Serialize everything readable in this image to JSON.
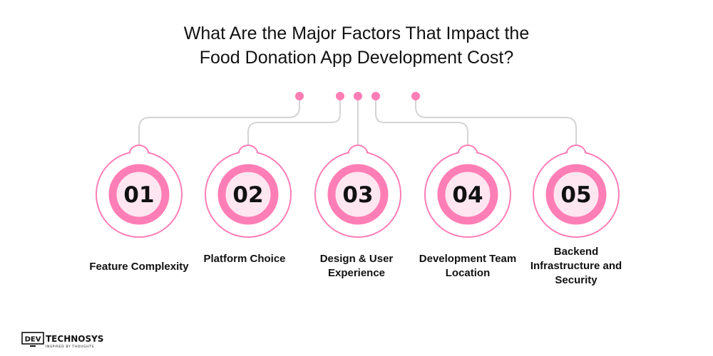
{
  "title": {
    "line1": "What Are the Major Factors That Impact the",
    "line2": "Food Donation App Development Cost?"
  },
  "colors": {
    "accent": "#ff7eb6",
    "connector": "#d4d4d4",
    "circle_fill": "#ffe6f1",
    "text": "#111111"
  },
  "factors": [
    {
      "number": "01",
      "label": "Feature Complexity"
    },
    {
      "number": "02",
      "label": "Platform Choice"
    },
    {
      "number": "03",
      "label": "Design & User Experience"
    },
    {
      "number": "04",
      "label": "Development Team Location"
    },
    {
      "number": "05",
      "label": "Backend Infrastructure and Security"
    }
  ],
  "logo": {
    "brand_prefix": "DEV",
    "brand_name": "TECHNOSYS",
    "tagline": "INSPIRED BY THOUGHTS"
  }
}
